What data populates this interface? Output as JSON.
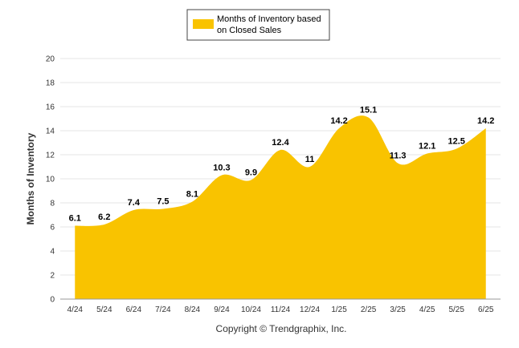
{
  "chart_data": {
    "type": "area",
    "categories": [
      "4/24",
      "5/24",
      "6/24",
      "7/24",
      "8/24",
      "9/24",
      "10/24",
      "11/24",
      "12/24",
      "1/25",
      "2/25",
      "3/25",
      "4/25",
      "5/25",
      "6/25"
    ],
    "series": [
      {
        "name_lines": [
          "Months of Inventory based",
          "on Closed Sales"
        ],
        "values": [
          6.1,
          6.2,
          7.4,
          7.5,
          8.1,
          10.3,
          9.9,
          12.4,
          11,
          14.2,
          15.1,
          11.3,
          12.1,
          12.5,
          14.2
        ],
        "labels": [
          "6.1",
          "6.2",
          "7.4",
          "7.5",
          "8.1",
          "10.3",
          "9.9",
          "12.4",
          "11",
          "14.2",
          "15.1",
          "11.3",
          "12.1",
          "12.5",
          "14.2"
        ],
        "color": "#F9C300"
      }
    ],
    "ylabel": "Months of Inventory",
    "ylim": [
      0,
      20
    ],
    "yticks": [
      0,
      2,
      4,
      6,
      8,
      10,
      12,
      14,
      16,
      18,
      20
    ],
    "grid": true,
    "legend": "top-center"
  },
  "footer": "Copyright © Trendgraphix, Inc."
}
